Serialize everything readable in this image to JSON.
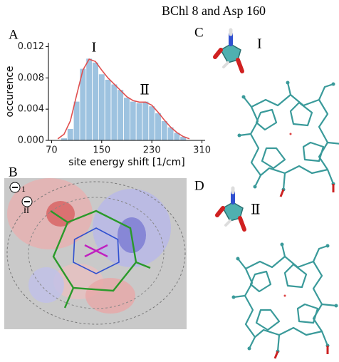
{
  "figure_title": "BChl 8 and Asp 160",
  "panel_labels": [
    "A",
    "B",
    "C",
    "D"
  ],
  "panel_b_sites": [
    "1",
    "II"
  ],
  "conformers": [
    "I",
    "Ⅱ"
  ],
  "chart_data": {
    "type": "histogram",
    "xlabel": "site energy shift [1/cm]",
    "ylabel": "occurence",
    "bins": [
      85,
      95,
      105,
      115,
      125,
      135,
      145,
      155,
      165,
      175,
      185,
      195,
      205,
      215,
      225,
      235,
      245,
      255,
      265,
      275,
      285
    ],
    "values": [
      0.0003,
      0.0015,
      0.005,
      0.0092,
      0.0105,
      0.01,
      0.0085,
      0.0078,
      0.0072,
      0.0065,
      0.0055,
      0.005,
      0.0048,
      0.005,
      0.0044,
      0.0035,
      0.0025,
      0.0017,
      0.001,
      0.0005
    ],
    "color": "#9ec3e0",
    "kde": {
      "color": "#e05050",
      "x": [
        80,
        90,
        100,
        110,
        120,
        130,
        140,
        150,
        160,
        170,
        180,
        190,
        200,
        210,
        220,
        230,
        240,
        250,
        260,
        270,
        280,
        290
      ],
      "values": [
        0.0002,
        0.0008,
        0.0025,
        0.0058,
        0.009,
        0.0104,
        0.0101,
        0.009,
        0.008,
        0.0072,
        0.0064,
        0.0056,
        0.0051,
        0.0049,
        0.0049,
        0.0045,
        0.0036,
        0.0026,
        0.0017,
        0.001,
        0.0005,
        0.0002
      ]
    },
    "annotations": [
      "I",
      "Ⅱ"
    ],
    "xlim": [
      65,
      315
    ],
    "ylim": [
      0,
      0.0125
    ],
    "xticks": [
      70,
      150,
      230,
      310
    ],
    "yticks": [
      {
        "value": 0,
        "label": "0.000"
      },
      0.004,
      0.008,
      0.012
    ]
  }
}
